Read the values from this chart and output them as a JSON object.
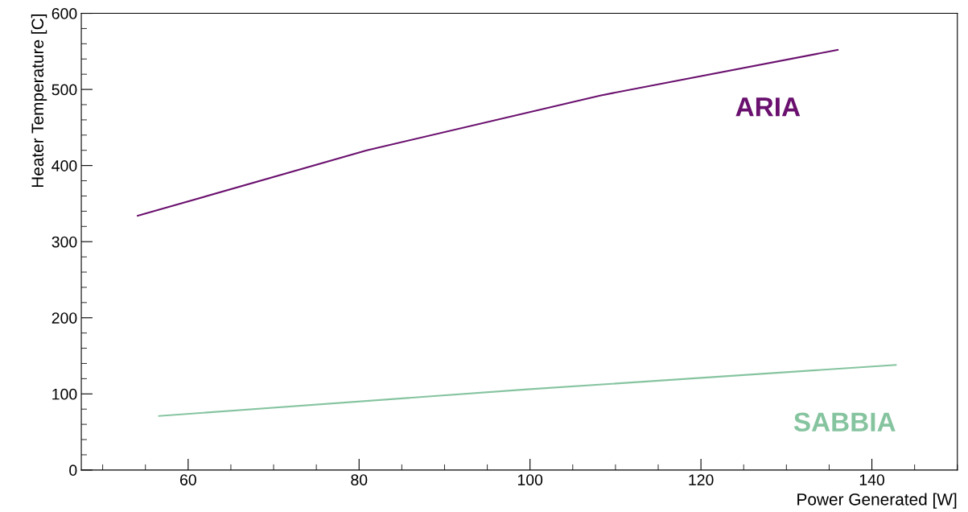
{
  "chart_data": {
    "type": "line",
    "xlabel": "Power Generated [W]",
    "ylabel": "Heater Temperature [C]",
    "xlim": [
      47.5,
      150
    ],
    "xticks": [
      60,
      80,
      100,
      120,
      140
    ],
    "ylim": [
      0,
      600
    ],
    "yticks": [
      0,
      100,
      200,
      300,
      400,
      500,
      600
    ],
    "grid": false,
    "legend": false,
    "marker": "none",
    "line_style": "solid",
    "series": [
      {
        "name": "ARIA",
        "color": "#6a106e",
        "x": [
          54.1,
          80.9,
          108.2,
          136.0
        ],
        "values": [
          334,
          420,
          492,
          552
        ]
      },
      {
        "name": "SABBIA",
        "color": "#86c4a0",
        "x": [
          56.6,
          99.7,
          142.8
        ],
        "values": [
          71,
          106,
          138
        ]
      }
    ]
  }
}
